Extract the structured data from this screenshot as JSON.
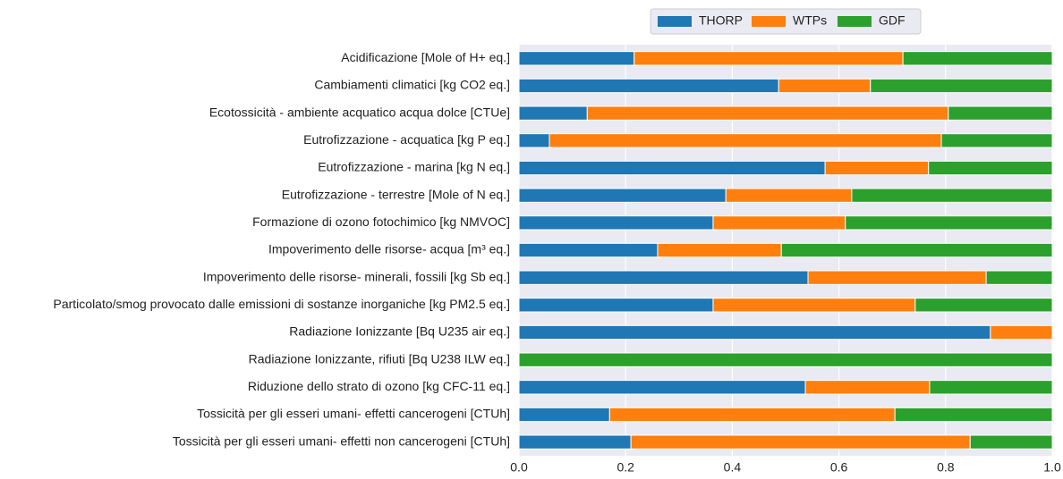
{
  "chart_data": {
    "type": "stacked-barh",
    "categories": [
      "Acidificazione [Mole of H+ eq.]",
      "Cambiamenti climatici [kg CO2 eq.]",
      "Ecotossicità - ambiente acquatico acqua dolce [CTUe]",
      "Eutrofizzazione - acquatica [kg P eq.]",
      "Eutrofizzazione - marina [kg N eq.]",
      "Eutrofizzazione - terrestre [Mole of N eq.]",
      "Formazione di ozono fotochimico [kg NMVOC]",
      "Impoverimento delle risorse- acqua [m³ eq.]",
      "Impoverimento delle risorse- minerali, fossili [kg Sb eq.]",
      "Particolato/smog provocato dalle emissioni di sostanze inorganiche [kg PM2.5 eq.]",
      "Radiazione Ionizzante [Bq U235 air eq.]",
      "Radiazione Ionizzante, rifiuti [Bq U238 ILW eq.]",
      "Riduzione dello strato di ozono [kg CFC-11 eq.]",
      "Tossicità per gli esseri umani- effetti cancerogeni [CTUh]",
      "Tossicità per gli esseri umani- effetti non cancerogeni [CTUh]"
    ],
    "series": [
      {
        "name": "THORP",
        "color": "#1f77b4",
        "values": [
          0.216,
          0.487,
          0.128,
          0.057,
          0.574,
          0.388,
          0.364,
          0.26,
          0.542,
          0.364,
          0.884,
          0,
          0.537,
          0.17,
          0.21
        ]
      },
      {
        "name": "WTPs",
        "color": "#ff7f0e",
        "values": [
          0.504,
          0.172,
          0.677,
          0.735,
          0.194,
          0.236,
          0.248,
          0.232,
          0.334,
          0.379,
          0.116,
          0,
          0.233,
          0.535,
          0.636
        ]
      },
      {
        "name": "GDF",
        "color": "#2ca02c",
        "values": [
          0.28,
          0.341,
          0.195,
          0.208,
          0.232,
          0.376,
          0.388,
          0.508,
          0.124,
          0.257,
          0,
          1,
          0.23,
          0.295,
          0.154
        ]
      }
    ],
    "xlim": [
      0,
      1
    ],
    "xticks": [
      {
        "value": 0,
        "label": "0.0"
      },
      0.2,
      0.4,
      0.6,
      0.8,
      {
        "value": 1,
        "label": "1.0"
      }
    ],
    "grid": true,
    "legend": "upper center"
  }
}
